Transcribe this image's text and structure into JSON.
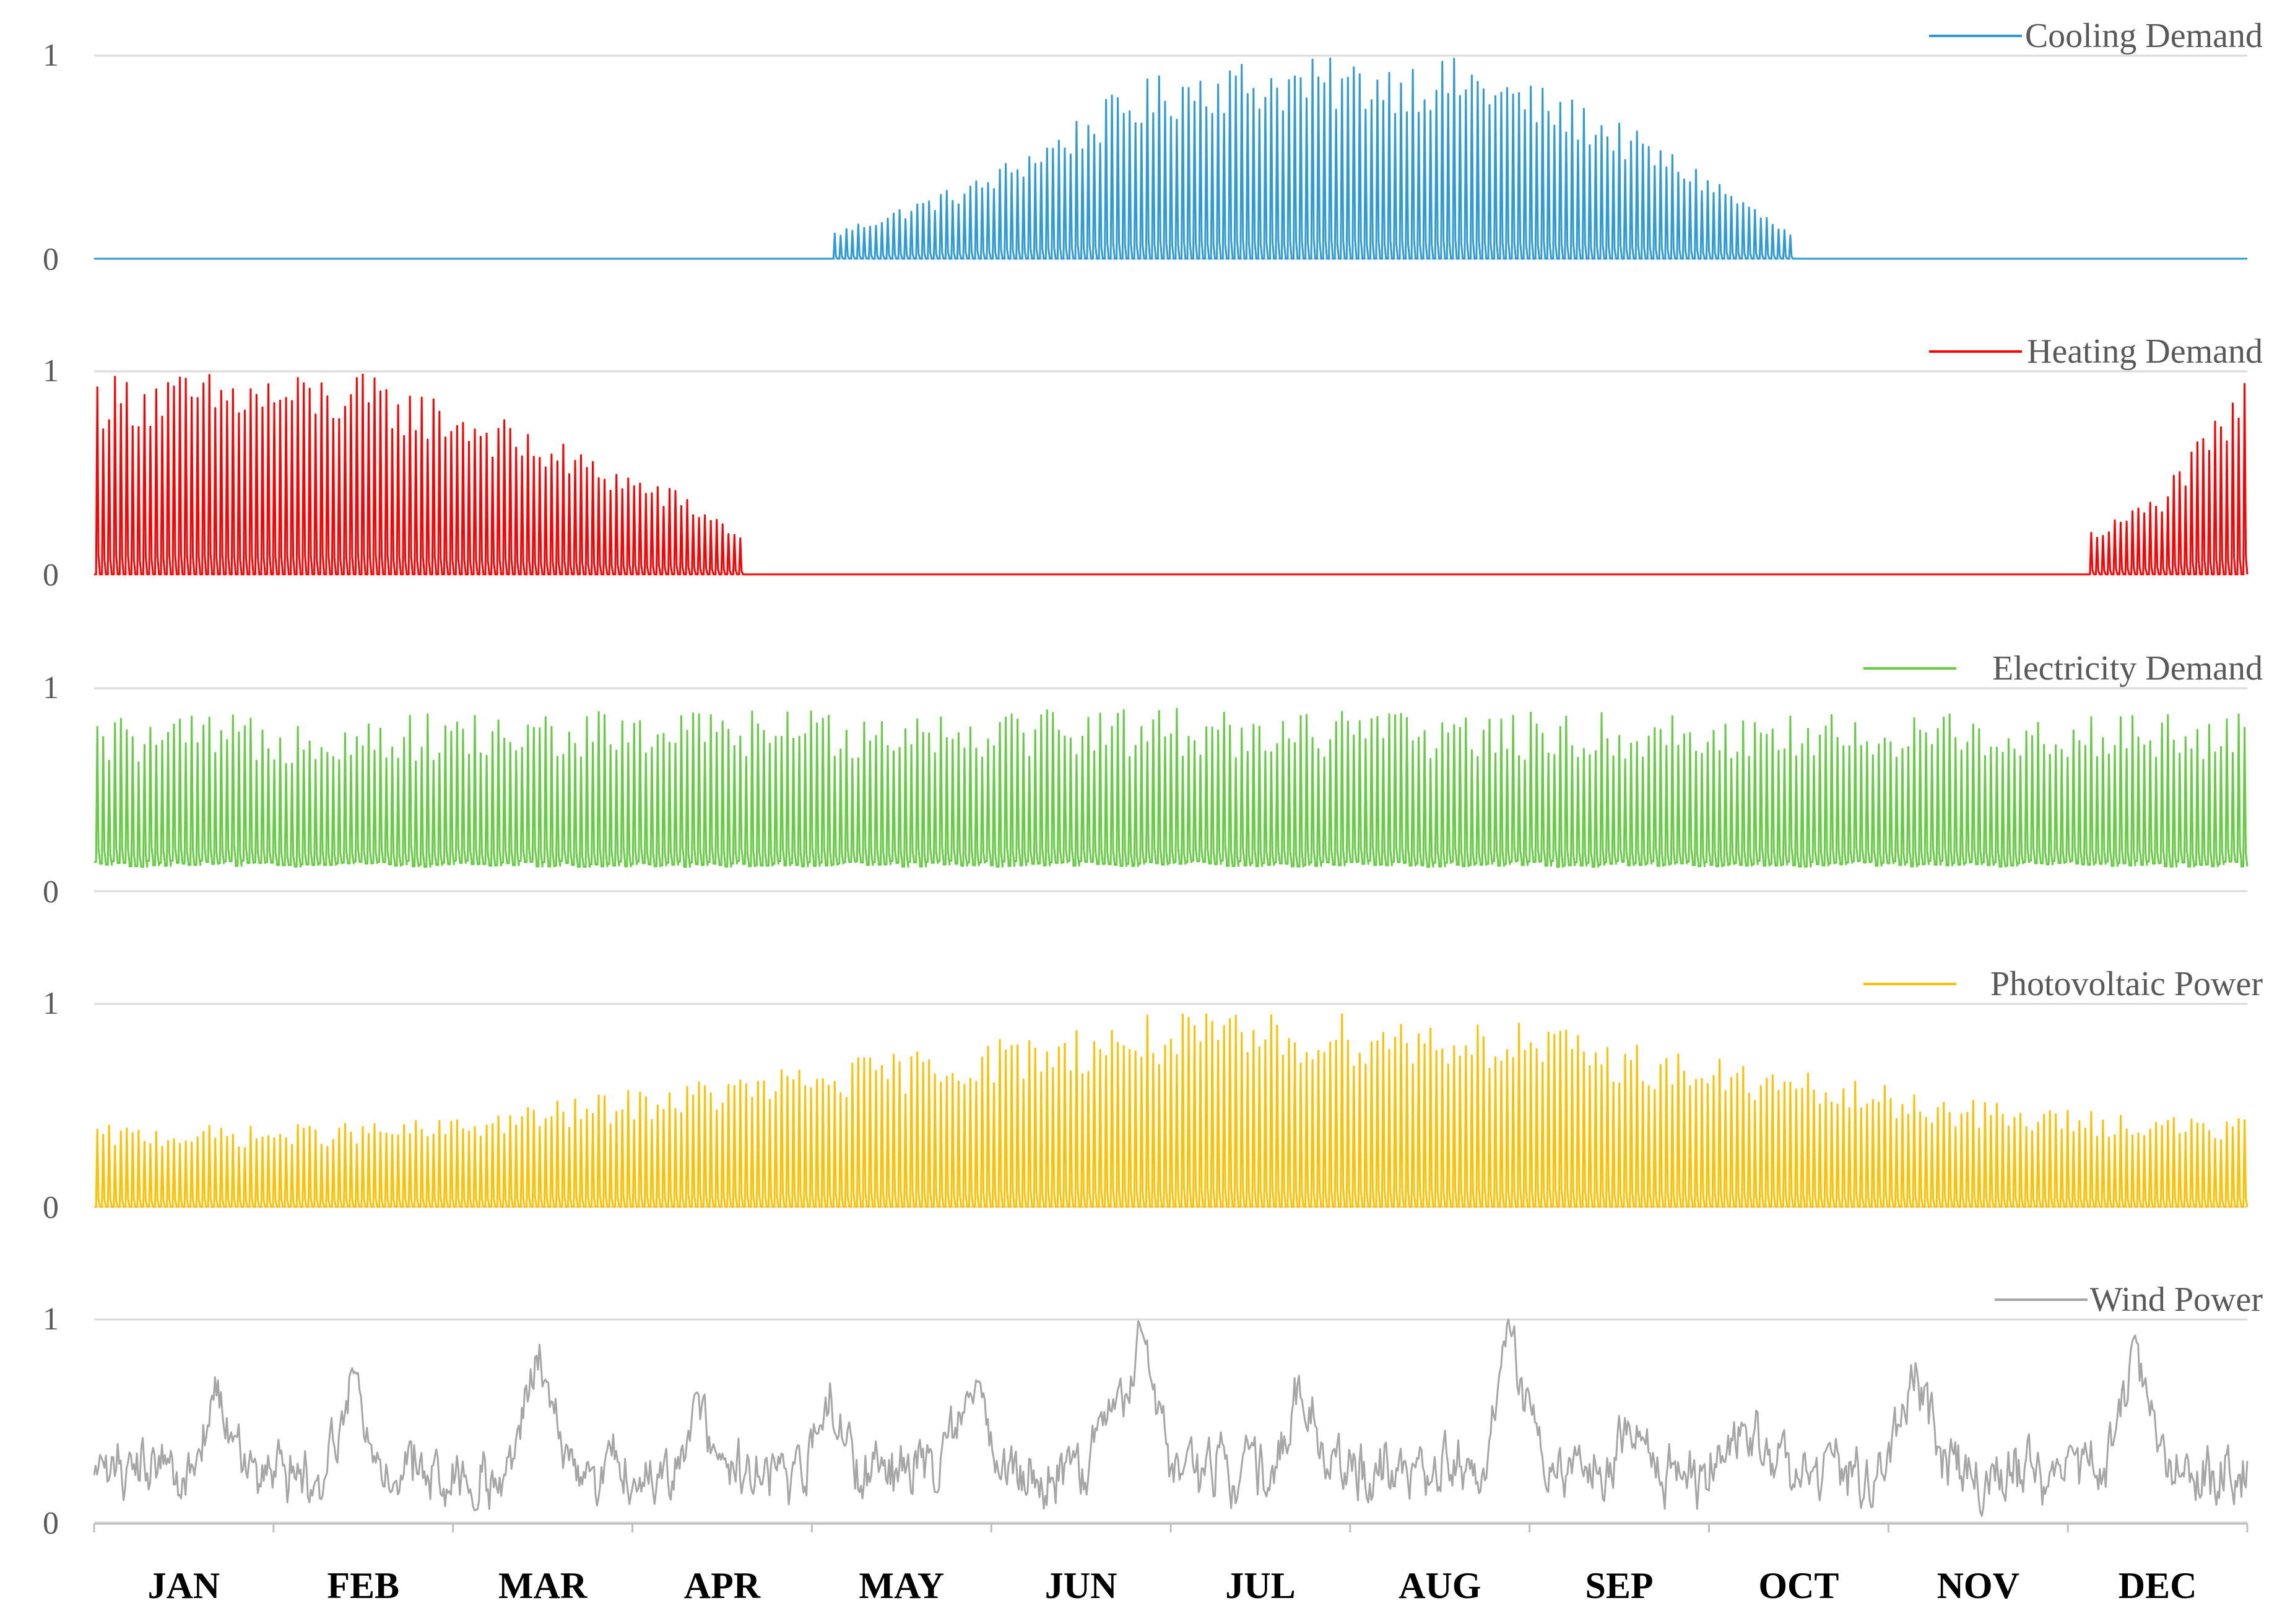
{
  "chart_data": {
    "type": "line",
    "x_domain": [
      0,
      8760
    ],
    "ylim": [
      0,
      1
    ],
    "y_ticks": [
      "0",
      "1"
    ],
    "months": [
      "JAN",
      "FEB",
      "MAR",
      "APR",
      "MAY",
      "JUN",
      "JUL",
      "AUG",
      "SEP",
      "OCT",
      "NOV",
      "DEC"
    ],
    "grid": true,
    "legend_position": "top-right",
    "panels": [
      {
        "series_name": "Cooling Demand",
        "color": "#2E9BD6",
        "pattern": "diurnal",
        "active": [
          [
            3000,
            6910
          ]
        ],
        "envelope": [
          [
            0,
            0
          ],
          [
            2950,
            0
          ],
          [
            3000,
            0.13
          ],
          [
            3600,
            0.4
          ],
          [
            4200,
            0.85
          ],
          [
            4500,
            0.98
          ],
          [
            5200,
            0.99
          ],
          [
            5600,
            0.99
          ],
          [
            6100,
            0.75
          ],
          [
            6600,
            0.4
          ],
          [
            6910,
            0.12
          ],
          [
            6960,
            0
          ],
          [
            8760,
            0
          ]
        ],
        "daily_min": 0.0
      },
      {
        "series_name": "Heating Demand",
        "color": "#FF0000",
        "pattern": "diurnal",
        "active": [
          [
            0,
            2650
          ],
          [
            8110,
            8760
          ]
        ],
        "envelope": [
          [
            0,
            0.99
          ],
          [
            700,
            1.0
          ],
          [
            1100,
            0.99
          ],
          [
            1500,
            0.85
          ],
          [
            2000,
            0.6
          ],
          [
            2400,
            0.4
          ],
          [
            2650,
            0.2
          ],
          [
            2700,
            0
          ],
          [
            8060,
            0
          ],
          [
            8110,
            0.2
          ],
          [
            8400,
            0.4
          ],
          [
            8760,
            0.98
          ]
        ],
        "daily_min": 0.0
      },
      {
        "series_name": "Electricity Demand",
        "color": "#66CC44",
        "pattern": "diurnal",
        "active": [
          [
            0,
            8760
          ]
        ],
        "envelope": [
          [
            0,
            0.86
          ],
          [
            1500,
            0.88
          ],
          [
            4000,
            0.92
          ],
          [
            6000,
            0.88
          ],
          [
            8760,
            0.88
          ]
        ],
        "daily_min": 0.12
      },
      {
        "series_name": "Photovoltaic Power",
        "color": "#FFC000",
        "pattern": "diurnal",
        "active": [
          [
            0,
            8760
          ]
        ],
        "envelope": [
          [
            0,
            0.4
          ],
          [
            700,
            0.4
          ],
          [
            1400,
            0.43
          ],
          [
            2200,
            0.58
          ],
          [
            3000,
            0.72
          ],
          [
            3600,
            0.82
          ],
          [
            4300,
            0.95
          ],
          [
            5200,
            0.96
          ],
          [
            5800,
            0.92
          ],
          [
            6400,
            0.78
          ],
          [
            7000,
            0.65
          ],
          [
            7800,
            0.5
          ],
          [
            8760,
            0.43
          ]
        ],
        "daily_min": 0.0
      },
      {
        "series_name": "Wind Power",
        "color": "#A6A6A6",
        "pattern": "wind",
        "active": [
          [
            0,
            8760
          ]
        ],
        "peaks": [
          [
            500,
            0.72
          ],
          [
            1050,
            0.86
          ],
          [
            1800,
            0.9
          ],
          [
            2450,
            0.62
          ],
          [
            3000,
            0.68
          ],
          [
            3550,
            0.76
          ],
          [
            4150,
            0.76
          ],
          [
            4250,
            1.0
          ],
          [
            4900,
            0.8
          ],
          [
            5760,
            1.0
          ],
          [
            6250,
            0.6
          ],
          [
            6720,
            0.6
          ],
          [
            7400,
            0.9
          ],
          [
            8300,
            0.95
          ]
        ],
        "daily_min": 0.0
      }
    ]
  }
}
